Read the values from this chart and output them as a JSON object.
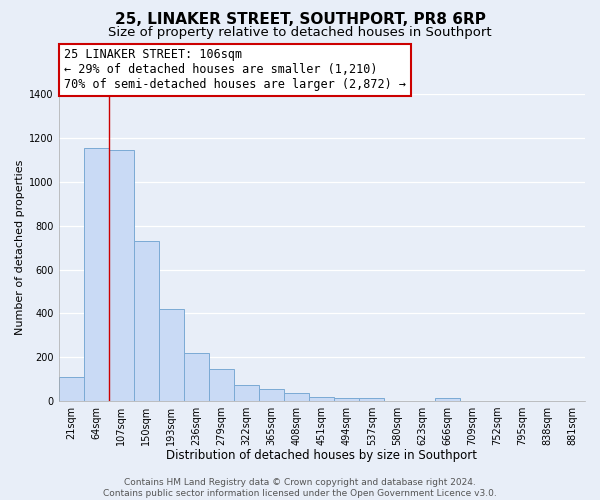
{
  "title": "25, LINAKER STREET, SOUTHPORT, PR8 6RP",
  "subtitle": "Size of property relative to detached houses in Southport",
  "xlabel": "Distribution of detached houses by size in Southport",
  "ylabel": "Number of detached properties",
  "bin_labels": [
    "21sqm",
    "64sqm",
    "107sqm",
    "150sqm",
    "193sqm",
    "236sqm",
    "279sqm",
    "322sqm",
    "365sqm",
    "408sqm",
    "451sqm",
    "494sqm",
    "537sqm",
    "580sqm",
    "623sqm",
    "666sqm",
    "709sqm",
    "752sqm",
    "795sqm",
    "838sqm",
    "881sqm"
  ],
  "bar_heights": [
    110,
    1155,
    1148,
    730,
    420,
    220,
    148,
    75,
    55,
    35,
    20,
    15,
    15,
    0,
    0,
    15,
    0,
    0,
    0,
    0,
    0
  ],
  "bar_color": "#c9daf5",
  "bar_edge_color": "#7baad4",
  "vline_x_index": 1.5,
  "vline_color": "#cc0000",
  "annotation_title": "25 LINAKER STREET: 106sqm",
  "annotation_line1": "← 29% of detached houses are smaller (1,210)",
  "annotation_line2": "70% of semi-detached houses are larger (2,872) →",
  "annotation_box_color": "#ffffff",
  "annotation_box_edge_color": "#cc0000",
  "ylim": [
    0,
    1400
  ],
  "yticks": [
    0,
    200,
    400,
    600,
    800,
    1000,
    1200,
    1400
  ],
  "footer_line1": "Contains HM Land Registry data © Crown copyright and database right 2024.",
  "footer_line2": "Contains public sector information licensed under the Open Government Licence v3.0.",
  "background_color": "#e8eef8",
  "grid_color": "#ffffff",
  "title_fontsize": 11,
  "subtitle_fontsize": 9.5,
  "xlabel_fontsize": 8.5,
  "ylabel_fontsize": 8,
  "tick_fontsize": 7,
  "footer_fontsize": 6.5,
  "ann_fontsize": 8.5
}
